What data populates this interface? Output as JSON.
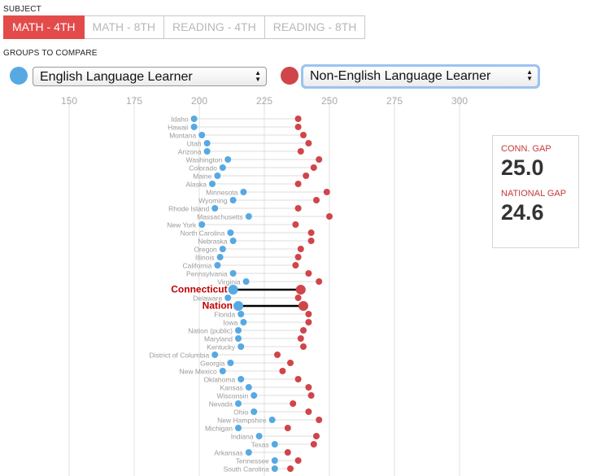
{
  "subject_label": "SUBJECT",
  "tabs": [
    {
      "label": "MATH - 4TH",
      "active": true
    },
    {
      "label": "MATH - 8TH",
      "active": false
    },
    {
      "label": "READING - 4TH",
      "active": false
    },
    {
      "label": "READING - 8TH",
      "active": false
    }
  ],
  "groups_label": "GROUPS TO COMPARE",
  "group_a": {
    "value": "English Language Learner",
    "color": "#56a9e3"
  },
  "group_b": {
    "value": "Non-English Language Learner",
    "color": "#d0454a"
  },
  "gap_panel": {
    "conn_gap_label": "CONN. GAP",
    "conn_gap_value": "25.0",
    "national_gap_label": "NATIONAL GAP",
    "national_gap_value": "24.6"
  },
  "colors": {
    "accent": "#e34b4b",
    "highlight_text": "#c00000"
  },
  "chart_data": {
    "type": "dumbbell",
    "title": "",
    "xlabel": "",
    "ylabel": "",
    "xlim": [
      150,
      325
    ],
    "xticks": [
      150,
      175,
      200,
      225,
      250,
      275,
      300,
      325
    ],
    "grid": true,
    "series_names": [
      "English Language Learner",
      "Non-English Language Learner"
    ],
    "highlighted": [
      "Connecticut",
      "Nation"
    ],
    "rows": [
      {
        "label": "Idaho",
        "ell": 198,
        "non_ell": 238
      },
      {
        "label": "Hawaii",
        "ell": 198,
        "non_ell": 238
      },
      {
        "label": "Montana",
        "ell": 201,
        "non_ell": 240
      },
      {
        "label": "Utah",
        "ell": 203,
        "non_ell": 242
      },
      {
        "label": "Arizona",
        "ell": 203,
        "non_ell": 239
      },
      {
        "label": "Washington",
        "ell": 211,
        "non_ell": 246
      },
      {
        "label": "Colorado",
        "ell": 209,
        "non_ell": 244
      },
      {
        "label": "Maine",
        "ell": 207,
        "non_ell": 241
      },
      {
        "label": "Alaska",
        "ell": 205,
        "non_ell": 238
      },
      {
        "label": "Minnesota",
        "ell": 217,
        "non_ell": 249
      },
      {
        "label": "Wyoming",
        "ell": 213,
        "non_ell": 245
      },
      {
        "label": "Rhode Island",
        "ell": 206,
        "non_ell": 238
      },
      {
        "label": "Massachusetts",
        "ell": 219,
        "non_ell": 250
      },
      {
        "label": "New York",
        "ell": 201,
        "non_ell": 237
      },
      {
        "label": "North Carolina",
        "ell": 212,
        "non_ell": 243
      },
      {
        "label": "Nebraska",
        "ell": 213,
        "non_ell": 243
      },
      {
        "label": "Oregon",
        "ell": 209,
        "non_ell": 239
      },
      {
        "label": "Illinois",
        "ell": 208,
        "non_ell": 238
      },
      {
        "label": "California",
        "ell": 207,
        "non_ell": 237
      },
      {
        "label": "Pennsylvania",
        "ell": 213,
        "non_ell": 242
      },
      {
        "label": "Virginia",
        "ell": 218,
        "non_ell": 246
      },
      {
        "label": "Connecticut",
        "ell": 213,
        "non_ell": 239
      },
      {
        "label": "Delaware",
        "ell": 211,
        "non_ell": 238
      },
      {
        "label": "Nation",
        "ell": 215,
        "non_ell": 240
      },
      {
        "label": "Florida",
        "ell": 216,
        "non_ell": 242
      },
      {
        "label": "Iowa",
        "ell": 217,
        "non_ell": 242
      },
      {
        "label": "Nation (public)",
        "ell": 215,
        "non_ell": 240
      },
      {
        "label": "Maryland",
        "ell": 215,
        "non_ell": 239
      },
      {
        "label": "Kentucky",
        "ell": 216,
        "non_ell": 240
      },
      {
        "label": "District of Columbia",
        "ell": 206,
        "non_ell": 230
      },
      {
        "label": "Georgia",
        "ell": 212,
        "non_ell": 235
      },
      {
        "label": "New Mexico",
        "ell": 209,
        "non_ell": 232
      },
      {
        "label": "Oklahoma",
        "ell": 216,
        "non_ell": 238
      },
      {
        "label": "Kansas",
        "ell": 219,
        "non_ell": 242
      },
      {
        "label": "Wisconsin",
        "ell": 221,
        "non_ell": 243
      },
      {
        "label": "Nevada",
        "ell": 215,
        "non_ell": 236
      },
      {
        "label": "Ohio",
        "ell": 221,
        "non_ell": 242
      },
      {
        "label": "New Hampshire",
        "ell": 228,
        "non_ell": 246
      },
      {
        "label": "Michigan",
        "ell": 215,
        "non_ell": 234
      },
      {
        "label": "Indiana",
        "ell": 223,
        "non_ell": 245
      },
      {
        "label": "Texas",
        "ell": 229,
        "non_ell": 244
      },
      {
        "label": "Arkansas",
        "ell": 219,
        "non_ell": 234
      },
      {
        "label": "Tennessee",
        "ell": 229,
        "non_ell": 238
      },
      {
        "label": "South Carolina",
        "ell": 229,
        "non_ell": 235
      }
    ]
  }
}
